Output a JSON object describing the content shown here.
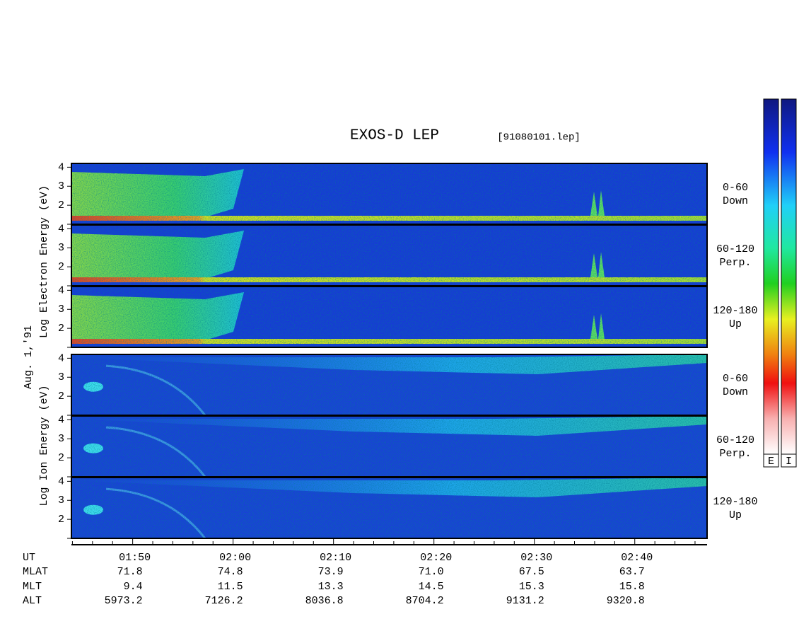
{
  "title": "EXOS-D LEP",
  "file": "[91080101.lep]",
  "date_label": "Aug. 1,'91",
  "electron": {
    "ylabel": "Log Electron Energy (eV)",
    "panels": [
      {
        "range": "0-60",
        "direction": "Down"
      },
      {
        "range": "60-120",
        "direction": "Perp."
      },
      {
        "range": "120-180",
        "direction": "Up"
      }
    ]
  },
  "ion": {
    "ylabel": "Log Ion Energy (eV)",
    "panels": [
      {
        "range": "0-60",
        "direction": "Down"
      },
      {
        "range": "60-120",
        "direction": "Perp."
      },
      {
        "range": "120-180",
        "direction": "Up"
      }
    ]
  },
  "ylim": [
    1,
    4.2
  ],
  "yticks": [
    2,
    3,
    4
  ],
  "yminorticks": [
    1
  ],
  "xlim": [
    103.9,
    167.2
  ],
  "xticks": [
    {
      "value": 110,
      "label": "01:50"
    },
    {
      "value": 120,
      "label": "02:00"
    },
    {
      "value": 130,
      "label": "02:10"
    },
    {
      "value": 140,
      "label": "02:20"
    },
    {
      "value": 150,
      "label": "02:30"
    },
    {
      "value": 160,
      "label": "02:40"
    }
  ],
  "xminorticks": [
    104,
    106,
    108,
    112,
    114,
    116,
    118,
    122,
    124,
    126,
    128,
    132,
    134,
    136,
    138,
    142,
    144,
    146,
    148,
    152,
    154,
    156,
    158,
    162,
    164,
    166
  ],
  "rows": [
    {
      "name": "UT"
    },
    {
      "name": "MLAT",
      "values": [
        "71.8",
        "74.8",
        "73.9",
        "71.0",
        "67.5",
        "63.7"
      ]
    },
    {
      "name": "MLT",
      "values": [
        "9.4",
        "11.5",
        "13.3",
        "14.5",
        "15.3",
        "15.8"
      ]
    },
    {
      "name": "ALT",
      "values": [
        "5973.2",
        "7126.2",
        "8036.8",
        "8704.2",
        "9131.2",
        "9320.8"
      ]
    }
  ],
  "colorbars": [
    "E",
    "I"
  ]
}
